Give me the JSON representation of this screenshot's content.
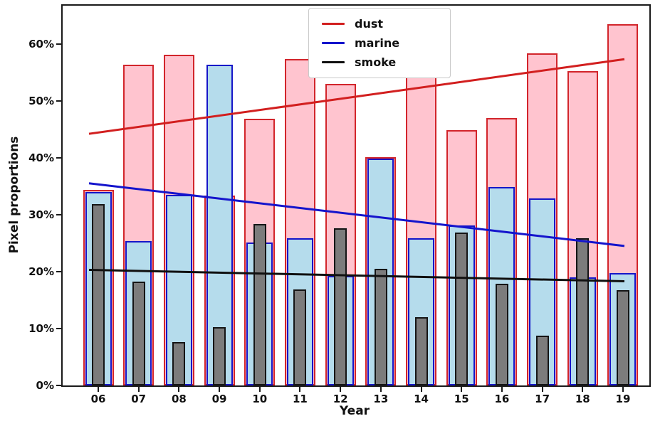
{
  "axes": {
    "ylabel": "Pixel proportions",
    "xlabel": "Year",
    "yticks": [
      "0%",
      "10%",
      "20%",
      "30%",
      "40%",
      "50%",
      "60%"
    ],
    "ytick_values": [
      0,
      10,
      20,
      30,
      40,
      50,
      60
    ],
    "spine_color": "#1a1a1a"
  },
  "legend": {
    "items": [
      {
        "label": "dust",
        "color": "#d21f1f"
      },
      {
        "label": "marine",
        "color": "#1414cc"
      },
      {
        "label": "smoke",
        "color": "#101010"
      }
    ]
  },
  "chart_data": {
    "type": "bar",
    "title": "",
    "xlabel": "Year",
    "ylabel": "Pixel proportions",
    "categories": [
      "06",
      "07",
      "08",
      "09",
      "10",
      "11",
      "12",
      "13",
      "14",
      "15",
      "16",
      "17",
      "18",
      "19"
    ],
    "series": [
      {
        "name": "dust",
        "fill": "#ffc4cf",
        "edge": "#d2252b",
        "values": [
          34.3,
          56.3,
          58.1,
          33.4,
          46.8,
          57.3,
          52.9,
          40.1,
          62.3,
          44.9,
          47.0,
          58.3,
          55.2,
          63.5
        ]
      },
      {
        "name": "marine",
        "fill": "#b5dcec",
        "edge": "#1616c8",
        "values": [
          34.0,
          25.3,
          33.5,
          56.3,
          25.1,
          25.8,
          19.2,
          39.8,
          25.8,
          28.1,
          34.9,
          32.9,
          19.0,
          19.7
        ]
      },
      {
        "name": "smoke",
        "fill": "#7c7c7c",
        "edge": "#151515",
        "values": [
          31.9,
          18.2,
          7.6,
          10.3,
          28.3,
          16.9,
          27.6,
          20.5,
          12.0,
          26.9,
          17.9,
          8.7,
          25.8,
          16.8
        ]
      }
    ],
    "trend_lines": [
      {
        "name": "dust",
        "color": "#d21f1f",
        "start_pct": 44.2,
        "end_pct": 57.3
      },
      {
        "name": "marine",
        "color": "#1414cc",
        "start_pct": 35.5,
        "end_pct": 24.5
      },
      {
        "name": "smoke",
        "color": "#101010",
        "start_pct": 20.3,
        "end_pct": 18.3
      }
    ],
    "ylim": [
      0,
      66.7
    ],
    "grid": false,
    "legend_position": "upper center"
  }
}
